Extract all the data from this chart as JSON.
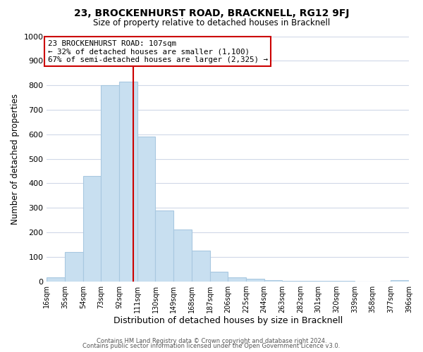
{
  "title": "23, BROCKENHURST ROAD, BRACKNELL, RG12 9FJ",
  "subtitle": "Size of property relative to detached houses in Bracknell",
  "xlabel": "Distribution of detached houses by size in Bracknell",
  "ylabel": "Number of detached properties",
  "bar_edges": [
    16,
    35,
    54,
    73,
    92,
    111,
    130,
    149,
    168,
    187,
    206,
    225,
    244,
    263,
    282,
    301,
    320,
    339,
    358,
    377,
    396
  ],
  "bar_heights": [
    15,
    120,
    430,
    800,
    815,
    590,
    290,
    210,
    125,
    40,
    15,
    10,
    5,
    3,
    2,
    1,
    1,
    0,
    0,
    5
  ],
  "bar_color": "#c8dff0",
  "bar_edgecolor": "#a8c8e0",
  "property_line_x": 107,
  "property_line_color": "#cc0000",
  "annotation_title": "23 BROCKENHURST ROAD: 107sqm",
  "annotation_line1": "← 32% of detached houses are smaller (1,100)",
  "annotation_line2": "67% of semi-detached houses are larger (2,325) →",
  "annotation_box_color": "#ffffff",
  "annotation_box_edgecolor": "#cc0000",
  "ylim": [
    0,
    1000
  ],
  "yticks": [
    0,
    100,
    200,
    300,
    400,
    500,
    600,
    700,
    800,
    900,
    1000
  ],
  "tick_labels": [
    "16sqm",
    "35sqm",
    "54sqm",
    "73sqm",
    "92sqm",
    "111sqm",
    "130sqm",
    "149sqm",
    "168sqm",
    "187sqm",
    "206sqm",
    "225sqm",
    "244sqm",
    "263sqm",
    "282sqm",
    "301sqm",
    "320sqm",
    "339sqm",
    "358sqm",
    "377sqm",
    "396sqm"
  ],
  "footer1": "Contains HM Land Registry data © Crown copyright and database right 2024.",
  "footer2": "Contains public sector information licensed under the Open Government Licence v3.0.",
  "background_color": "#ffffff",
  "grid_color": "#d0d8e8"
}
